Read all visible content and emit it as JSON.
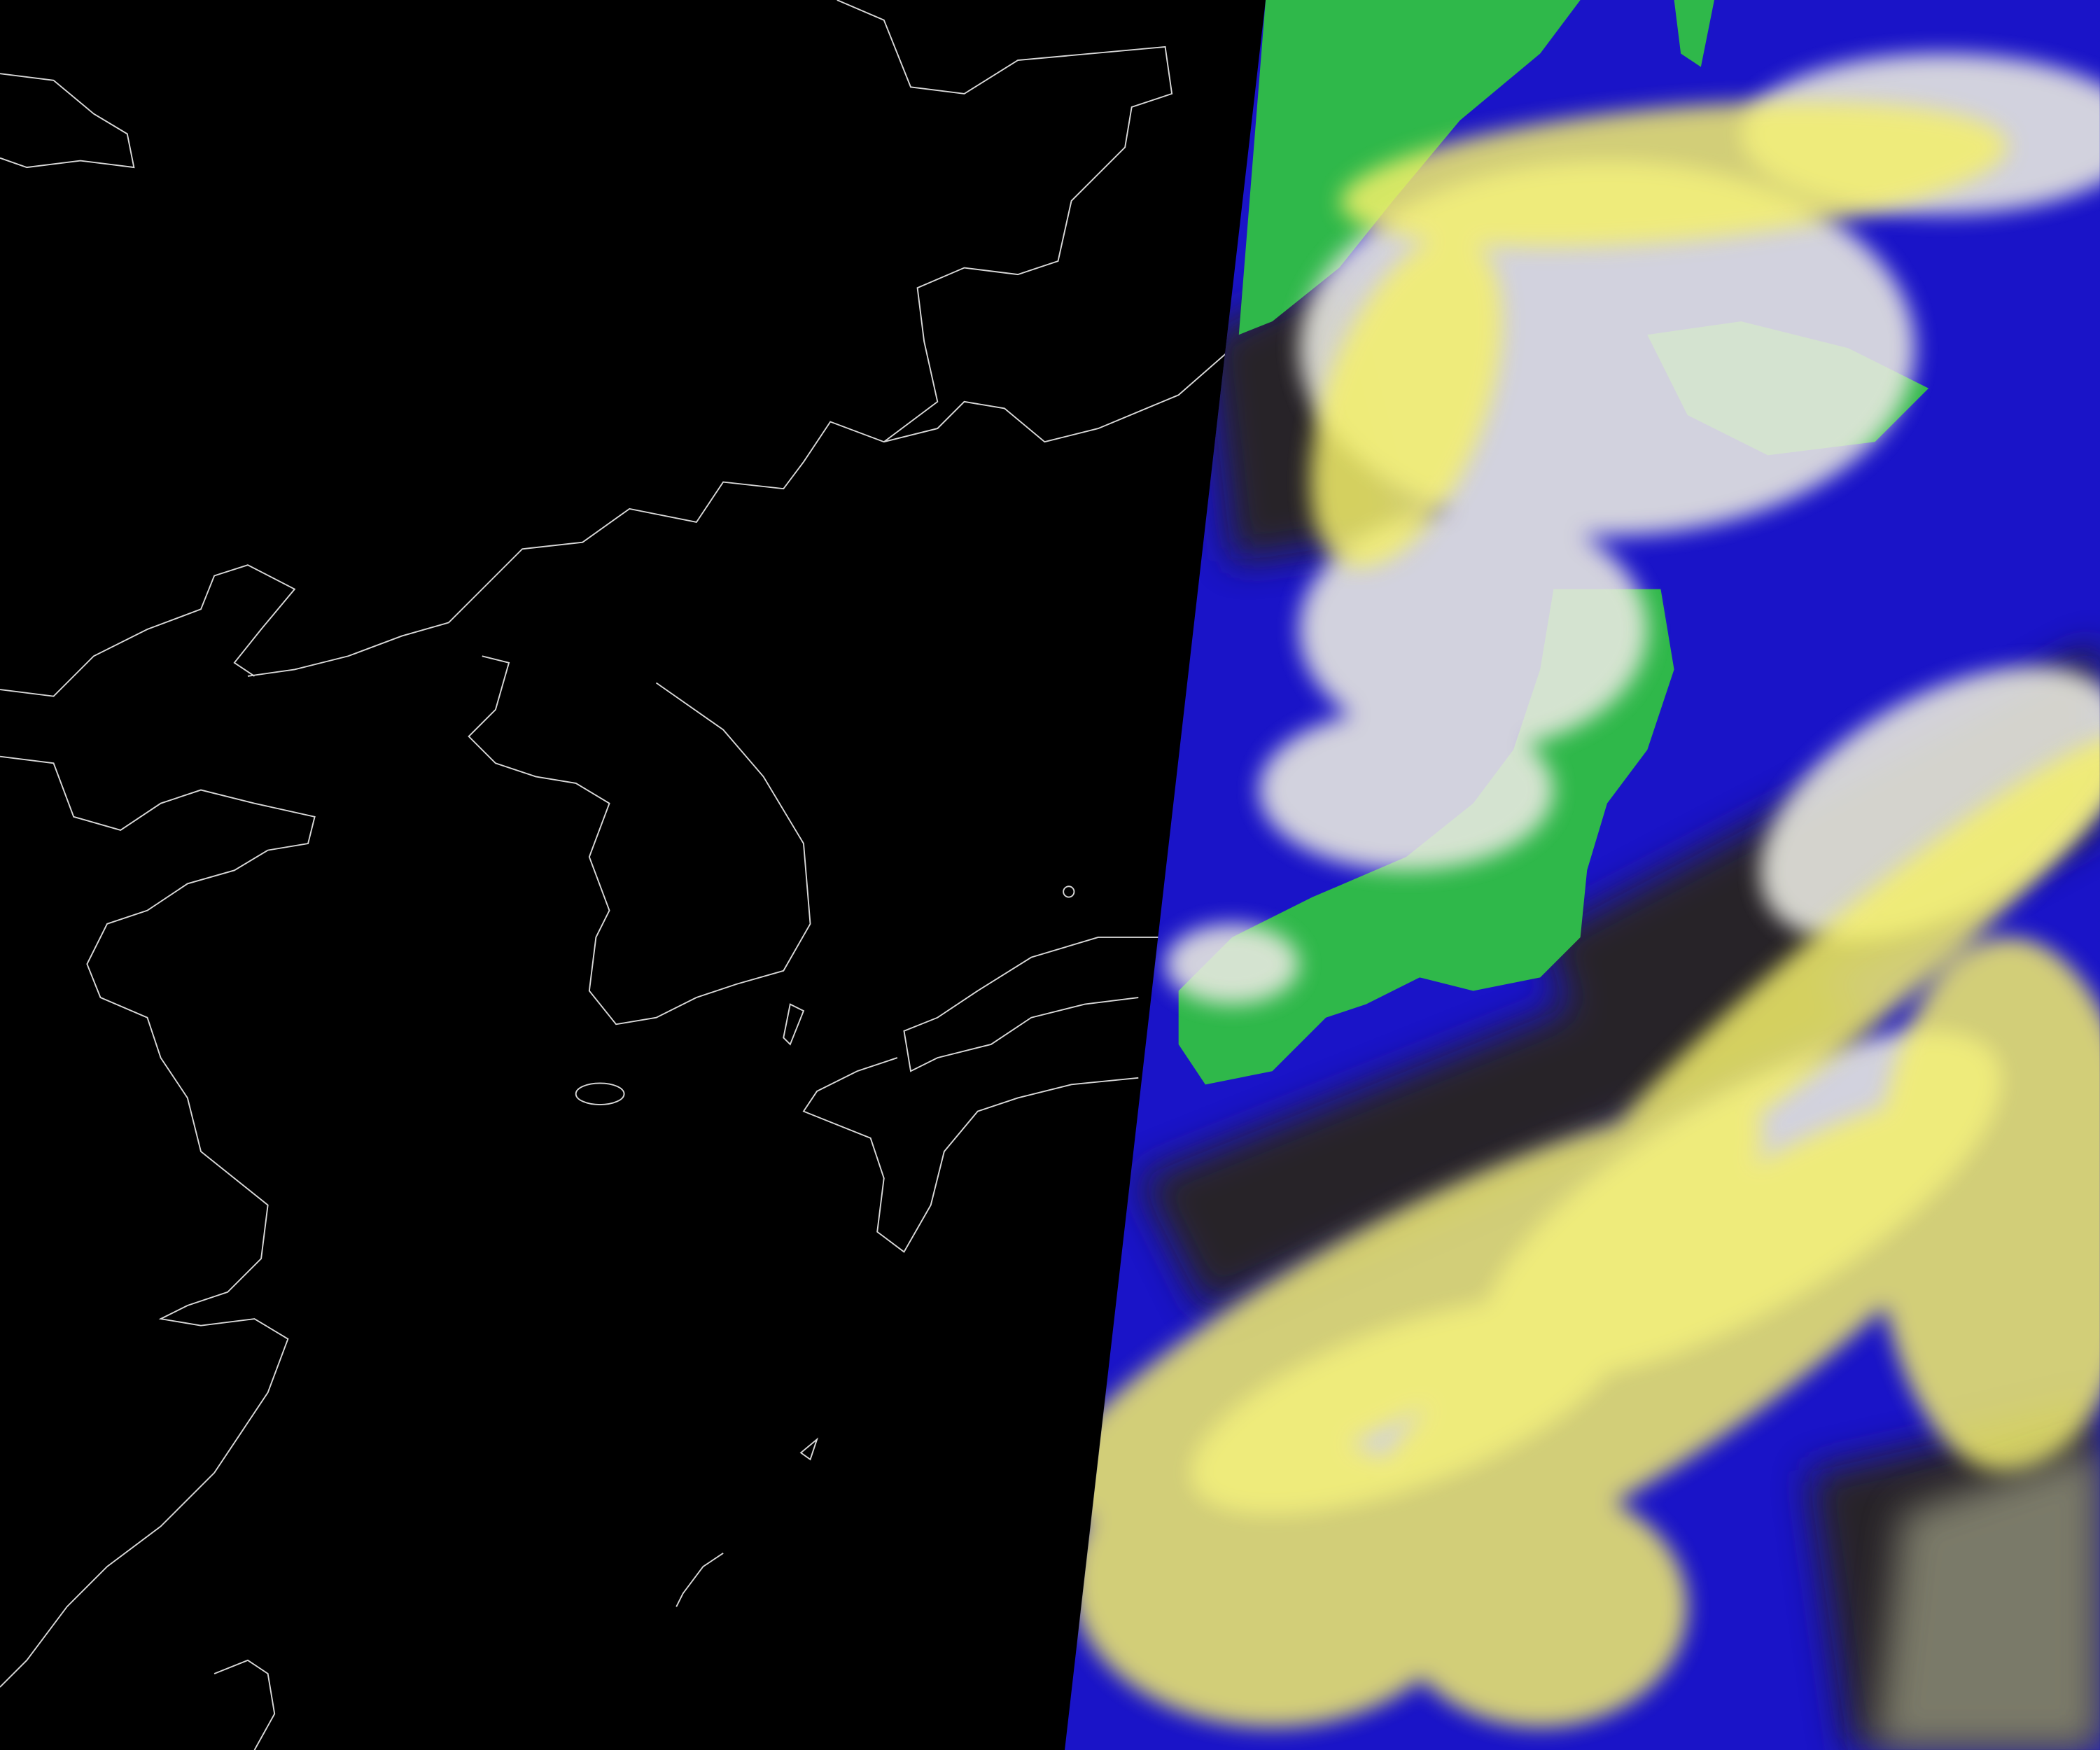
{
  "image": {
    "kind": "satellite false-color composite",
    "colors": {
      "background": "#000000",
      "coastline": "#d8d8d8",
      "ocean": "#1a14c8",
      "land": "#2fb84a",
      "high_cloud": "#f4f06a",
      "low_cloud": "#e8e8e0",
      "shadow": "#2a2610"
    }
  }
}
